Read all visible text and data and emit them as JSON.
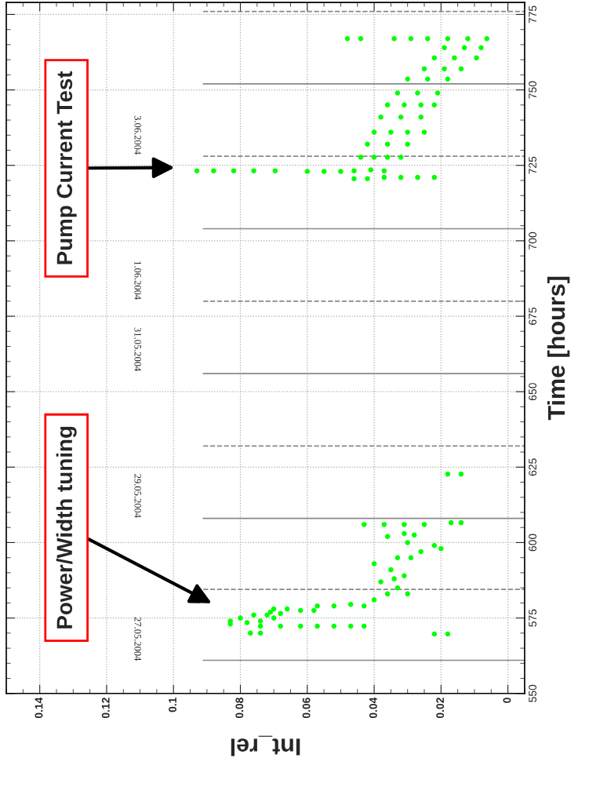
{
  "chart_data": {
    "type": "scatter",
    "xlabel": "Int_rel",
    "ylabel": "Time [hours]",
    "ylim": [
      550,
      779
    ],
    "yticks": [
      550,
      575,
      600,
      625,
      650,
      675,
      700,
      725,
      750,
      775
    ],
    "xlim": [
      0.15,
      -0.005
    ],
    "xticks": [
      0,
      0.02,
      0.04,
      0.06,
      0.08,
      0.1,
      0.12,
      0.14
    ],
    "grid": true,
    "marker": "circle",
    "series": [
      {
        "color": "#00ff00",
        "values": [
          573,
          573.5,
          574,
          575,
          576,
          577,
          575,
          574,
          576,
          576.5,
          578,
          578,
          572.3,
          572.3,
          572.3,
          572.3,
          572.3,
          572.3,
          572.3,
          570,
          570,
          577.5,
          577.5,
          579,
          579,
          579.5,
          579,
          581,
          583,
          585,
          587,
          589,
          591,
          593,
          595,
          583,
          588,
          595,
          597,
          599,
          600,
          598,
          602,
          603,
          602.5,
          606,
          606,
          606,
          606,
          606.6,
          606.6,
          622.7,
          622.7,
          569.7,
          569.7,
          723.2,
          723.5,
          723.2,
          727.7,
          727.7,
          727.7,
          727.7,
          732,
          732,
          732,
          736,
          736,
          736,
          736,
          741,
          741,
          741,
          745,
          745,
          745,
          745,
          749,
          749,
          749,
          753.6,
          753.6,
          753.6,
          757,
          757,
          757,
          760.6,
          760.6,
          760.6,
          764,
          764,
          764,
          767,
          767,
          767,
          723.2,
          723.2,
          723.2,
          723.2,
          723.2,
          723,
          723,
          723,
          721,
          721,
          721,
          721,
          720.6,
          720.6,
          767,
          767,
          767,
          767,
          767
        ],
        "x": [
          0.083,
          0.078,
          0.074,
          0.08,
          0.076,
          0.071,
          0.07,
          0.083,
          0.072,
          0.068,
          0.066,
          0.07,
          0.074,
          0.068,
          0.062,
          0.057,
          0.052,
          0.047,
          0.043,
          0.077,
          0.074,
          0.062,
          0.058,
          0.057,
          0.052,
          0.047,
          0.043,
          0.04,
          0.036,
          0.033,
          0.038,
          0.031,
          0.035,
          0.04,
          0.033,
          0.03,
          0.034,
          0.029,
          0.026,
          0.022,
          0.03,
          0.02,
          0.036,
          0.031,
          0.028,
          0.043,
          0.037,
          0.031,
          0.025,
          0.017,
          0.014,
          0.018,
          0.014,
          0.022,
          0.018,
          0.046,
          0.041,
          0.037,
          0.044,
          0.04,
          0.036,
          0.032,
          0.042,
          0.036,
          0.03,
          0.04,
          0.035,
          0.03,
          0.025,
          0.038,
          0.032,
          0.026,
          0.036,
          0.031,
          0.026,
          0.022,
          0.033,
          0.027,
          0.021,
          0.03,
          0.024,
          0.018,
          0.025,
          0.019,
          0.014,
          0.022,
          0.016,
          0.0094,
          0.019,
          0.013,
          0.008,
          0.018,
          0.012,
          0.0063,
          0.093,
          0.088,
          0.082,
          0.076,
          0.0696,
          0.06,
          0.055,
          0.05,
          0.037,
          0.032,
          0.027,
          0.022,
          0.046,
          0.042,
          0.048,
          0.044,
          0.034,
          0.029,
          0.024
        ]
      }
    ],
    "ref_lines": [
      {
        "axis": "y",
        "value": 561,
        "color": "#888888",
        "line_style": "solid"
      },
      {
        "axis": "y",
        "value": 608,
        "color": "#888888",
        "line_style": "solid"
      },
      {
        "axis": "y",
        "value": 656,
        "color": "#888888",
        "line_style": "solid"
      },
      {
        "axis": "y",
        "value": 704,
        "color": "#888888",
        "line_style": "solid"
      },
      {
        "axis": "y",
        "value": 752,
        "color": "#888888",
        "line_style": "solid"
      },
      {
        "axis": "y",
        "value": 584.5,
        "color": "#888888",
        "line_style": "dashed"
      },
      {
        "axis": "y",
        "value": 632,
        "color": "#888888",
        "line_style": "dashed"
      },
      {
        "axis": "y",
        "value": 680,
        "color": "#888888",
        "line_style": "dashed"
      },
      {
        "axis": "y",
        "value": 728,
        "color": "#888888",
        "line_style": "dashed"
      },
      {
        "axis": "y",
        "value": 776,
        "color": "#888888",
        "line_style": "dashed"
      }
    ],
    "annotations": [
      "Power/Width tuning",
      "Pump Current Test",
      "27.05.2004",
      "29.05.2004",
      "31.05.2004",
      "1.06.2004",
      "3.06.2004"
    ]
  }
}
